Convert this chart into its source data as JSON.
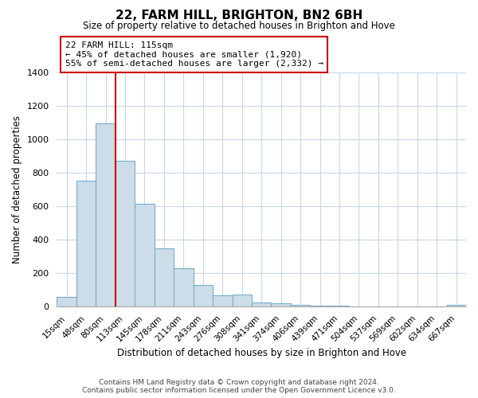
{
  "title": "22, FARM HILL, BRIGHTON, BN2 6BH",
  "subtitle": "Size of property relative to detached houses in Brighton and Hove",
  "xlabel": "Distribution of detached houses by size in Brighton and Hove",
  "ylabel": "Number of detached properties",
  "footer_lines": [
    "Contains HM Land Registry data © Crown copyright and database right 2024.",
    "Contains public sector information licensed under the Open Government Licence v3.0."
  ],
  "bar_labels": [
    "15sqm",
    "48sqm",
    "80sqm",
    "113sqm",
    "145sqm",
    "178sqm",
    "211sqm",
    "243sqm",
    "276sqm",
    "308sqm",
    "341sqm",
    "374sqm",
    "406sqm",
    "439sqm",
    "471sqm",
    "504sqm",
    "537sqm",
    "569sqm",
    "602sqm",
    "634sqm",
    "667sqm"
  ],
  "bar_values": [
    55,
    750,
    1095,
    870,
    615,
    348,
    228,
    130,
    65,
    70,
    25,
    18,
    10,
    5,
    2,
    1,
    0,
    0,
    0,
    0,
    10
  ],
  "bar_color": "#ccdce8",
  "bar_edge_color": "#7aaccf",
  "vline_color": "#cc0000",
  "annotation_line1": "22 FARM HILL: 115sqm",
  "annotation_line2": "← 45% of detached houses are smaller (1,920)",
  "annotation_line3": "55% of semi-detached houses are larger (2,332) →",
  "annotation_box_edgecolor": "#cc0000",
  "ylim": [
    0,
    1400
  ],
  "yticks": [
    0,
    200,
    400,
    600,
    800,
    1000,
    1200,
    1400
  ],
  "background_color": "#ffffff",
  "grid_color": "#c8d8e8"
}
